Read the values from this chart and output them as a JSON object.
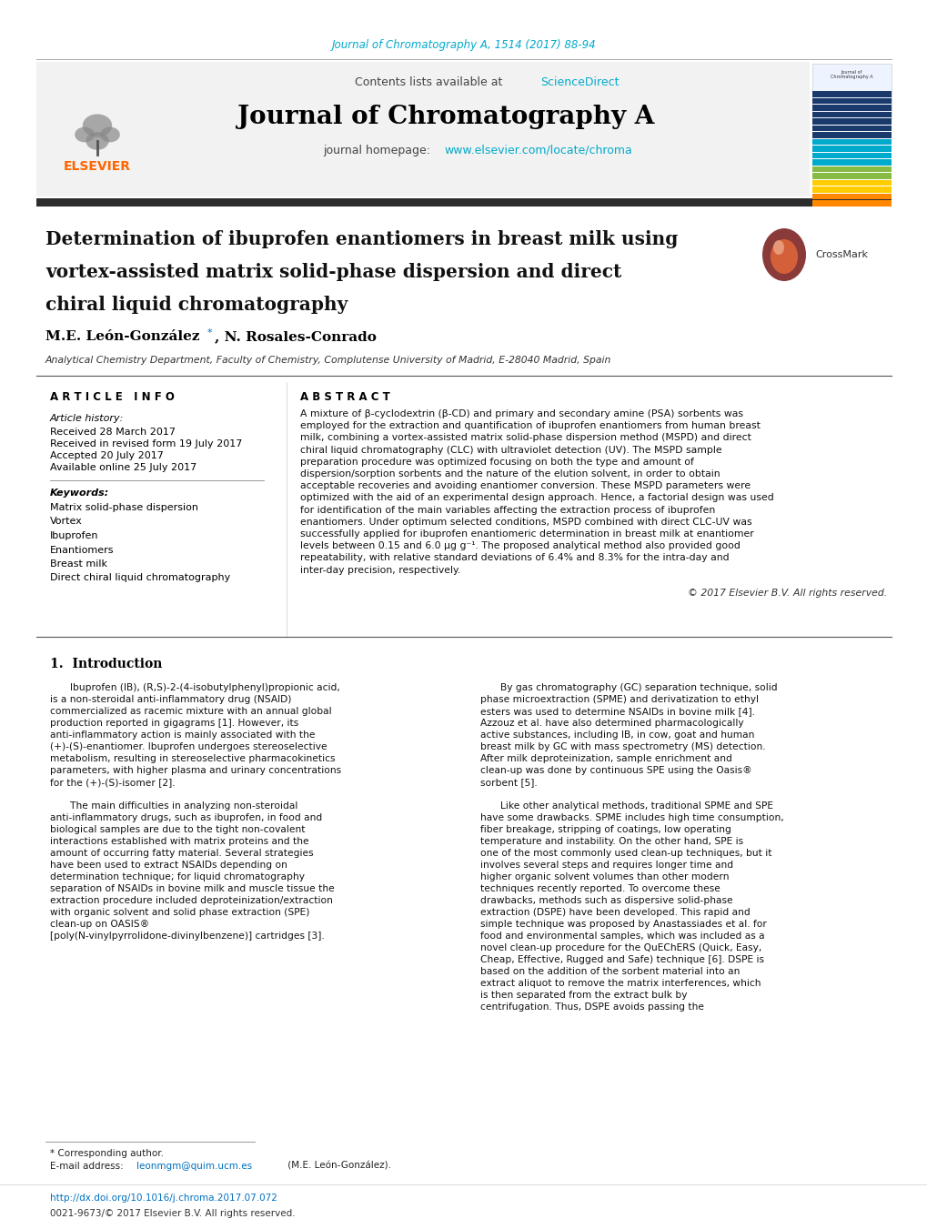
{
  "journal_ref": "Journal of Chromatography A, 1514 (2017) 88-94",
  "journal_ref_color": "#00aacc",
  "sciencedirect_color": "#00aacc",
  "journal_name": "Journal of Chromatography A",
  "homepage_url": "www.elsevier.com/locate/chroma",
  "homepage_url_color": "#00aacc",
  "title_line1": "Determination of ibuprofen enantiomers in breast milk using",
  "title_line2": "vortex-assisted matrix solid-phase dispersion and direct",
  "title_line3": "chiral liquid chromatography",
  "author_name": "M.E. León-González",
  "author_rest": ", N. Rosales-Conrado",
  "affiliation": "Analytical Chemistry Department, Faculty of Chemistry, Complutense University of Madrid, E-28040 Madrid, Spain",
  "article_info_header": "A R T I C L E   I N F O",
  "abstract_header": "A B S T R A C T",
  "article_history_label": "Article history:",
  "received": "Received 28 March 2017",
  "received_revised": "Received in revised form 19 July 2017",
  "accepted": "Accepted 20 July 2017",
  "available": "Available online 25 July 2017",
  "keywords_label": "Keywords:",
  "keywords": [
    "Matrix solid-phase dispersion",
    "Vortex",
    "Ibuprofen",
    "Enantiomers",
    "Breast milk",
    "Direct chiral liquid chromatography"
  ],
  "abstract_text": "A mixture of β-cyclodextrin (β-CD) and primary and secondary amine (PSA) sorbents was employed for the extraction and quantification of ibuprofen enantiomers from human breast milk, combining a vortex-assisted matrix solid-phase dispersion method (MSPD) and direct chiral liquid chromatography (CLC) with ultraviolet detection (UV). The MSPD sample preparation procedure was optimized focusing on both the type and amount of dispersion/sorption sorbents and the nature of the elution solvent, in order to obtain acceptable recoveries and avoiding enantiomer conversion. These MSPD parameters were optimized with the aid of an experimental design approach. Hence, a factorial design was used for identification of the main variables affecting the extraction process of ibuprofen enantiomers. Under optimum selected conditions, MSPD combined with direct CLC-UV was successfully applied for ibuprofen enantiomeric determination in breast milk at enantiomer levels between 0.15 and 6.0 μg g⁻¹. The proposed analytical method also provided good repeatability, with relative standard deviations of 6.4% and 8.3% for the intra-day and inter-day precision, respectively.",
  "copyright": "© 2017 Elsevier B.V. All rights reserved.",
  "intro_header": "1.  Introduction",
  "intro_left": "Ibuprofen (IB), (R,S)-2-(4-isobutylphenyl)propionic acid, is a non-steroidal anti-inflammatory drug (NSAID) commercialized as racemic mixture with an annual global production reported in gigagrams [1]. However, its anti-inflammatory action is mainly associated with the (+)-(S)-enantiomer. Ibuprofen undergoes stereoselective metabolism, resulting in stereoselective pharmacokinetics parameters, with higher plasma and urinary concentrations for the (+)-(S)-isomer [2].\n\nThe main difficulties in analyzing non-steroidal anti-inflammatory drugs, such as ibuprofen, in food and biological samples are due to the tight non-covalent interactions established with matrix proteins and the amount of occurring fatty material. Several strategies have been used to extract NSAIDs depending on determination technique; for liquid chromatography separation of NSAIDs in bovine milk and muscle tissue the extraction procedure included deproteinization/extraction with organic solvent and solid phase extraction (SPE) clean-up on OASIS® [poly(N-vinylpyrrolidone-divinylbenzene)] cartridges [3].",
  "intro_right": "By gas chromatography (GC) separation technique, solid phase microextraction (SPME) and derivatization to ethyl esters was used to determine NSAIDs in bovine milk [4]. Azzouz et al. have also determined pharmacologically active substances, including IB, in cow, goat and human breast milk by GC with mass spectrometry (MS) detection. After milk deproteinization, sample enrichment and clean-up was done by continuous SPE using the Oasis® sorbent [5].\n\nLike other analytical methods, traditional SPME and SPE have some drawbacks. SPME includes high time consumption, fiber breakage, stripping of coatings, low operating temperature and instability. On the other hand, SPE is one of the most commonly used clean-up techniques, but it involves several steps and requires longer time and higher organic solvent volumes than other modern techniques recently reported. To overcome these drawbacks, methods such as dispersive solid-phase extraction (DSPE) have been developed. This rapid and simple technique was proposed by Anastassiades et al. for food and environmental samples, which was included as a novel clean-up procedure for the QuEChERS (Quick, Easy, Cheap, Effective, Rugged and Safe) technique [6]. DSPE is based on the addition of the sorbent material into an extract aliquot to remove the matrix interferences, which is then separated from the extract bulk by centrifugation. Thus, DSPE avoids passing the",
  "doi_text": "http://dx.doi.org/10.1016/j.chroma.2017.07.072",
  "issn_text": "0021-9673/© 2017 Elsevier B.V. All rights reserved.",
  "background_color": "#ffffff",
  "dark_bar_color": "#2d2d2d",
  "elsevier_orange": "#ff6600",
  "link_blue": "#0070c0",
  "text_black": "#000000",
  "bar_colors_top": [
    "#1a3a6b",
    "#1a3a6b",
    "#1a3a6b",
    "#1a3a6b",
    "#1a3a6b",
    "#1a3a6b",
    "#1a3a6b"
  ],
  "bar_colors_mid": [
    "#00aacc",
    "#00aacc",
    "#00aacc",
    "#00aacc"
  ],
  "bar_colors_bot": [
    "#88bb44",
    "#88bb44",
    "#ffcc00",
    "#ffcc00",
    "#ff8800",
    "#ff8800"
  ]
}
